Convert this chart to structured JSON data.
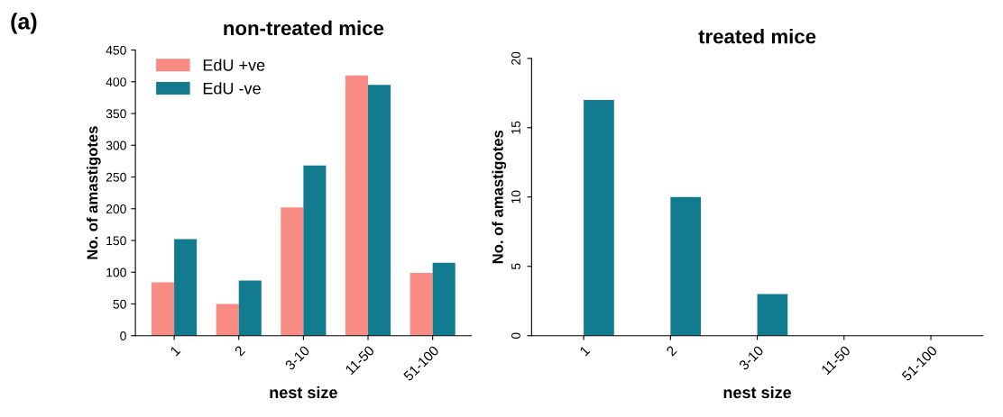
{
  "chart_data": [
    {
      "type": "bar",
      "title": "non-treated mice",
      "xlabel": "nest size",
      "ylabel": "No. of amastigotes",
      "annotations": [
        "(a)"
      ],
      "categories": [
        "1",
        "2",
        "3-10",
        "11-50",
        "51-100"
      ],
      "series": [
        {
          "name": "EdU +ve",
          "color": "#f98b85",
          "values": [
            84,
            50,
            202,
            410,
            99
          ]
        },
        {
          "name": "EdU -ve",
          "color": "#137b8f",
          "values": [
            152,
            87,
            268,
            395,
            115
          ]
        }
      ],
      "ylim": [
        0,
        450
      ],
      "yticks": [
        0,
        50,
        100,
        150,
        200,
        250,
        300,
        350,
        400,
        450
      ],
      "legend": "top left",
      "grid": false
    },
    {
      "type": "bar",
      "title": "treated mice",
      "xlabel": "nest size",
      "ylabel": "No. of amastigotes",
      "categories": [
        "1",
        "2",
        "3-10",
        "11-50",
        "51-100"
      ],
      "series": [
        {
          "color": "#f98b85",
          "values": [
            0,
            0,
            0,
            0,
            0
          ]
        },
        {
          "color": "#137b8f",
          "values": [
            17,
            10,
            3,
            0,
            0
          ]
        }
      ],
      "ylim": [
        0,
        20
      ],
      "yticks": [
        0,
        5,
        10,
        15,
        20
      ],
      "grid": false
    }
  ]
}
